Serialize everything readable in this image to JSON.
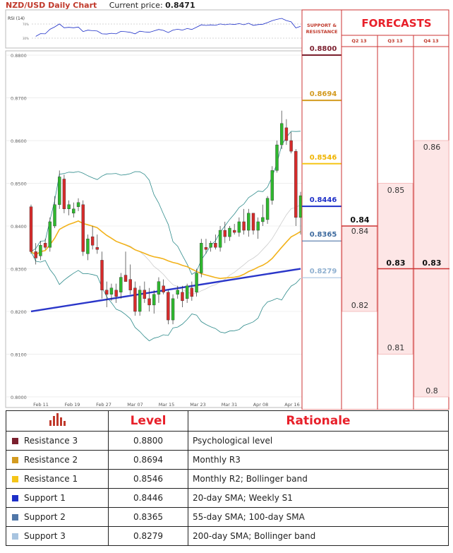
{
  "header": {
    "title": "NZD/USD Daily Chart",
    "price_label": "Current price:",
    "price_value": "0.8471"
  },
  "rsi": {
    "label": "RSI (14)",
    "tick_high": "70%",
    "tick_low": "30%"
  },
  "sr_header": "SUPPORT & RESISTANCE",
  "forecasts": {
    "title": "FORECASTS",
    "quarters": [
      "Q2 13",
      "Q3 13",
      "Q4 13"
    ]
  },
  "table": {
    "header_level": "Level",
    "header_rationale": "Rationale",
    "rows": [
      {
        "name": "Resistance 3",
        "level": "0.8800",
        "rationale": "Psychological level",
        "color": "#7b1f2e"
      },
      {
        "name": "Resistance 2",
        "level": "0.8694",
        "rationale": "Monthly R3",
        "color": "#d39b20"
      },
      {
        "name": "Resistance 1",
        "level": "0.8546",
        "rationale": "Monthly R2; Bollinger band",
        "color": "#f5c518"
      },
      {
        "name": "Support 1",
        "level": "0.8446",
        "rationale": "20-day SMA; Weekly S1",
        "color": "#1d2fc8"
      },
      {
        "name": "Support 2",
        "level": "0.8365",
        "rationale": "55-day SMA; 100-day SMA",
        "color": "#5077a8"
      },
      {
        "name": "Support 3",
        "level": "0.8279",
        "rationale": "200-day SMA; Bollinger band",
        "color": "#a8c4e0"
      }
    ]
  },
  "chart_data": {
    "type": "candlestick",
    "y_ticks": [
      "0.8800",
      "0.8700",
      "0.8600",
      "0.8500",
      "0.8400",
      "0.8300",
      "0.8200",
      "0.8100",
      "0.8000"
    ],
    "x_ticks": [
      "Feb 11",
      "Feb 19",
      "Feb 27",
      "Mar 07",
      "Mar 15",
      "Mar 23",
      "Mar 31",
      "Apr 08",
      "Apr 16"
    ],
    "ylim": [
      0.7995,
      0.881
    ],
    "sr_levels": [
      0.88,
      0.8694,
      0.8546,
      0.8446,
      0.8365,
      0.8279
    ],
    "forecast_cols": [
      {
        "quarter": "Q2 13",
        "high": "0.84",
        "low": "0.82",
        "median": "0.84"
      },
      {
        "quarter": "Q3 13",
        "high": "0.85",
        "low": "0.81",
        "median": "0.83"
      },
      {
        "quarter": "Q4 13",
        "high": "0.86",
        "low": "0.8",
        "median": "0.83"
      }
    ],
    "candles": [
      [
        0.8445,
        0.845,
        0.8335,
        0.834
      ],
      [
        0.834,
        0.836,
        0.831,
        0.8325
      ],
      [
        0.833,
        0.8365,
        0.832,
        0.8355
      ],
      [
        0.836,
        0.837,
        0.8345,
        0.835
      ],
      [
        0.835,
        0.842,
        0.834,
        0.841
      ],
      [
        0.84,
        0.847,
        0.8395,
        0.845
      ],
      [
        0.845,
        0.853,
        0.844,
        0.8515
      ],
      [
        0.851,
        0.852,
        0.843,
        0.844
      ],
      [
        0.844,
        0.846,
        0.8425,
        0.845
      ],
      [
        0.843,
        0.8455,
        0.842,
        0.844
      ],
      [
        0.8445,
        0.8465,
        0.8435,
        0.8455
      ],
      [
        0.845,
        0.846,
        0.833,
        0.834
      ],
      [
        0.8335,
        0.838,
        0.832,
        0.837
      ],
      [
        0.8375,
        0.84,
        0.8345,
        0.8355
      ],
      [
        0.835,
        0.838,
        0.8335,
        0.8345
      ],
      [
        0.832,
        0.834,
        0.823,
        0.825
      ],
      [
        0.825,
        0.827,
        0.821,
        0.824
      ],
      [
        0.824,
        0.8265,
        0.8225,
        0.8255
      ],
      [
        0.825,
        0.8265,
        0.822,
        0.8235
      ],
      [
        0.8245,
        0.829,
        0.823,
        0.828
      ],
      [
        0.8285,
        0.834,
        0.827,
        0.827
      ],
      [
        0.8275,
        0.831,
        0.824,
        0.825
      ],
      [
        0.8255,
        0.827,
        0.819,
        0.82
      ],
      [
        0.82,
        0.826,
        0.819,
        0.825
      ],
      [
        0.825,
        0.827,
        0.822,
        0.823
      ],
      [
        0.823,
        0.8255,
        0.82,
        0.8215
      ],
      [
        0.8215,
        0.825,
        0.8195,
        0.824
      ],
      [
        0.824,
        0.828,
        0.822,
        0.827
      ],
      [
        0.826,
        0.8275,
        0.824,
        0.8245
      ],
      [
        0.8245,
        0.825,
        0.817,
        0.818
      ],
      [
        0.818,
        0.824,
        0.817,
        0.823
      ],
      [
        0.824,
        0.826,
        0.823,
        0.825
      ],
      [
        0.8245,
        0.826,
        0.821,
        0.8225
      ],
      [
        0.823,
        0.8265,
        0.822,
        0.826
      ],
      [
        0.8255,
        0.827,
        0.8225,
        0.8235
      ],
      [
        0.8245,
        0.83,
        0.8235,
        0.829
      ],
      [
        0.829,
        0.837,
        0.828,
        0.836
      ],
      [
        0.835,
        0.837,
        0.8335,
        0.8345
      ],
      [
        0.835,
        0.8365,
        0.834,
        0.836
      ],
      [
        0.836,
        0.838,
        0.8345,
        0.835
      ],
      [
        0.835,
        0.84,
        0.834,
        0.839
      ],
      [
        0.839,
        0.841,
        0.836,
        0.8375
      ],
      [
        0.8375,
        0.84,
        0.8365,
        0.8395
      ],
      [
        0.839,
        0.8405,
        0.838,
        0.8385
      ],
      [
        0.8385,
        0.842,
        0.8375,
        0.841
      ],
      [
        0.841,
        0.844,
        0.838,
        0.839
      ],
      [
        0.839,
        0.844,
        0.8375,
        0.843
      ],
      [
        0.843,
        0.843,
        0.838,
        0.839
      ],
      [
        0.839,
        0.842,
        0.837,
        0.841
      ],
      [
        0.841,
        0.845,
        0.84,
        0.842
      ],
      [
        0.8415,
        0.847,
        0.8405,
        0.8465
      ],
      [
        0.846,
        0.854,
        0.845,
        0.853
      ],
      [
        0.853,
        0.86,
        0.8525,
        0.859
      ],
      [
        0.859,
        0.867,
        0.858,
        0.864
      ],
      [
        0.863,
        0.865,
        0.859,
        0.86
      ],
      [
        0.86,
        0.862,
        0.857,
        0.8575
      ],
      [
        0.8575,
        0.858,
        0.84,
        0.842
      ],
      [
        0.842,
        0.848,
        0.838,
        0.8471
      ]
    ]
  }
}
